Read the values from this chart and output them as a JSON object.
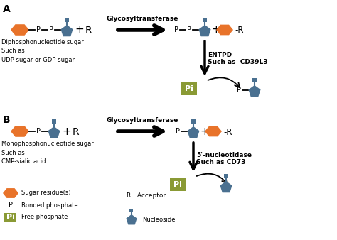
{
  "bg_color": "#ffffff",
  "orange_color": "#e8732a",
  "blue_color": "#4a7090",
  "pi_bg": "#8a9a35",
  "arrow_color": "#000000",
  "text_color": "#1a1a1a",
  "label_A": "A",
  "label_B": "B",
  "title_A": "Diphosphonucleotide sugar\nSuch as\nUDP-sugar or GDP-sugar",
  "title_B": "Monophosphonucleotide sugar\nSuch as\nCMP-sialic acid",
  "gt_label": "Glycosyltransferase",
  "entpd_label": "ENTPD\nSuch as  CD39L3",
  "nucleotidase_label": "5'-nucleotidase\nSuch as CD73",
  "legend_sugar": "Sugar residue(s)",
  "legend_phosphate": "Bonded phosphate",
  "legend_free": "Free phosphate",
  "legend_R": "R   Acceptor",
  "legend_nucleoside": "Nucleoside"
}
